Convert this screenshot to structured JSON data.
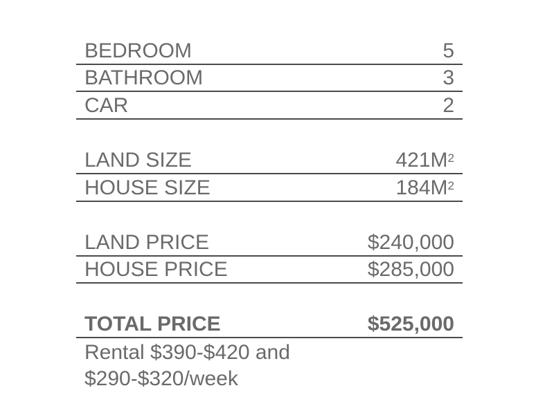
{
  "rooms": [
    {
      "label": "BEDROOM",
      "value": "5"
    },
    {
      "label": "BATHROOM",
      "value": "3"
    },
    {
      "label": "CAR",
      "value": "2"
    }
  ],
  "sizes": [
    {
      "label": "LAND SIZE",
      "value": "421M",
      "unit_sup": "2"
    },
    {
      "label": "HOUSE SIZE",
      "value": "184M",
      "unit_sup": "2"
    }
  ],
  "prices": [
    {
      "label": "LAND PRICE",
      "value": "$240,000"
    },
    {
      "label": "HOUSE PRICE",
      "value": "$285,000"
    }
  ],
  "total": {
    "label": "TOTAL PRICE",
    "value": "$525,000"
  },
  "rental": {
    "line1": "Rental $390-$420 and",
    "line2": "$290-$320/week"
  }
}
